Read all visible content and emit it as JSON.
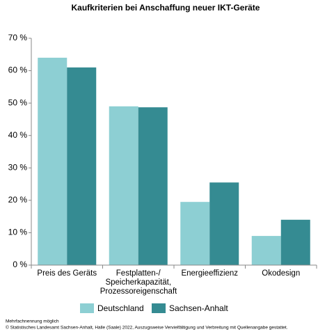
{
  "chart_data": {
    "type": "bar",
    "title": "Kaufkriterien bei Anschaffung neuer IKT-Geräte",
    "categories": [
      "Preis des Geräts",
      "Festplatten-/ Speicherkapazität, Prozessoreigenschaften",
      "Energieeffizienz",
      "Ökodesign"
    ],
    "series": [
      {
        "name": "Deutschland",
        "color": "#8dcfd3",
        "values": [
          64,
          49,
          19.5,
          9
        ]
      },
      {
        "name": "Sachsen-Anhalt",
        "color": "#358b92",
        "values": [
          61,
          48.7,
          25.5,
          14
        ]
      }
    ],
    "ylim": [
      0,
      70
    ],
    "yticks": [
      {
        "value": 0,
        "label": "0 %"
      },
      {
        "value": 10,
        "label": "10 %"
      },
      {
        "value": 20,
        "label": "20 %"
      },
      {
        "value": 30,
        "label": "30 %"
      },
      {
        "value": 40,
        "label": "40 %"
      },
      {
        "value": 50,
        "label": "50 %"
      },
      {
        "value": 60,
        "label": "60 %"
      },
      {
        "value": 70,
        "label": "70 %"
      }
    ],
    "grid": false,
    "notes": [
      "Mehrfachnennung möglich",
      "© Statistisches Landesamt Sachsen-Anhalt, Halle (Saale) 2022, Auszugsweise Vervielfältigung und Verbreitung mit Quellenangabe gestattet."
    ]
  }
}
